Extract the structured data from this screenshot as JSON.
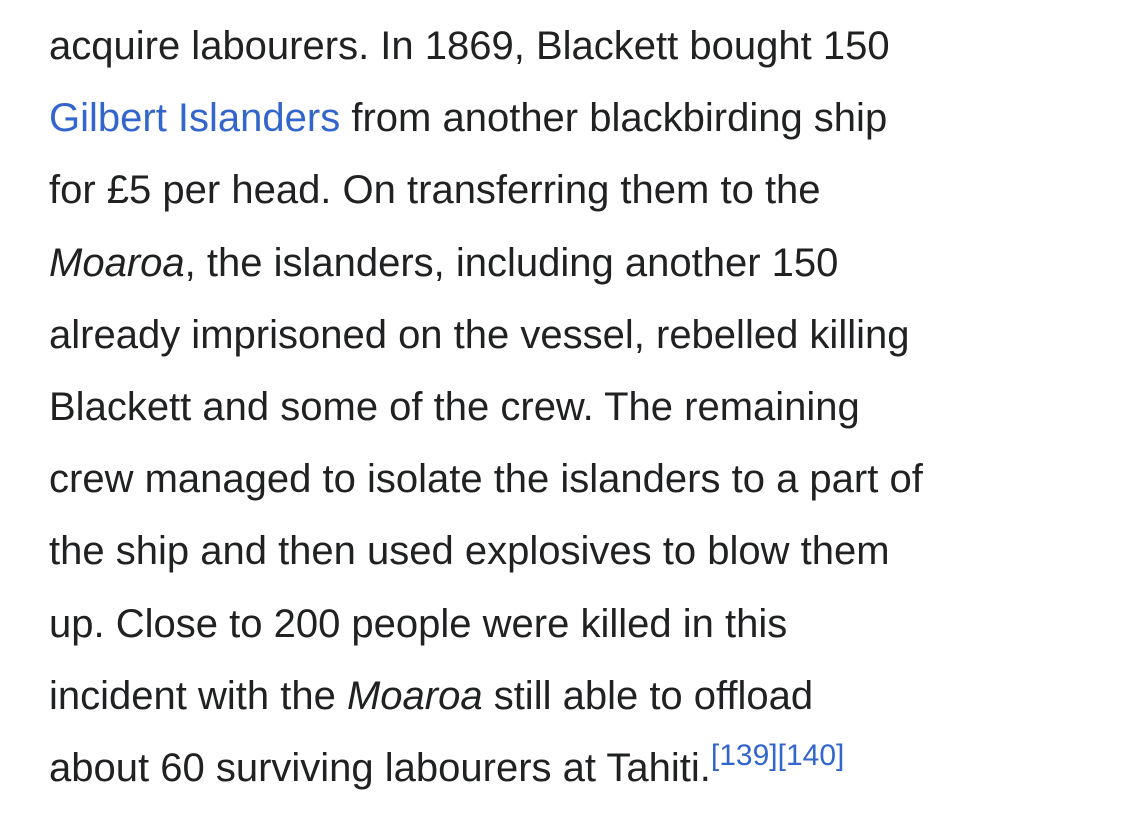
{
  "paragraph": {
    "line1": "acquire labourers. In 1869, Blackett bought 150",
    "line2_link": "Gilbert Islanders",
    "line2_rest": " from another blackbirding ship",
    "line3": "for £5 per head. On transferring them to the",
    "line4_ship": "Moaroa",
    "line4_rest": ", the islanders, including another 150",
    "line5": "already imprisoned on the vessel, rebelled killing",
    "line6": "Blackett and some of the crew. The remaining",
    "line7": "crew managed to isolate the islanders to a part of",
    "line8": "the ship and then used explosives to blow them",
    "line9": "up. Close to 200 people were killed in this",
    "line10_start": "incident with the ",
    "line10_ship": "Moaroa",
    "line10_rest": " still able to offload",
    "line11": "about 60 surviving labourers at Tahiti.",
    "citations": [
      "[139]",
      "[140]"
    ]
  },
  "colors": {
    "text": "#202122",
    "link": "#3366cc",
    "background": "#ffffff"
  }
}
